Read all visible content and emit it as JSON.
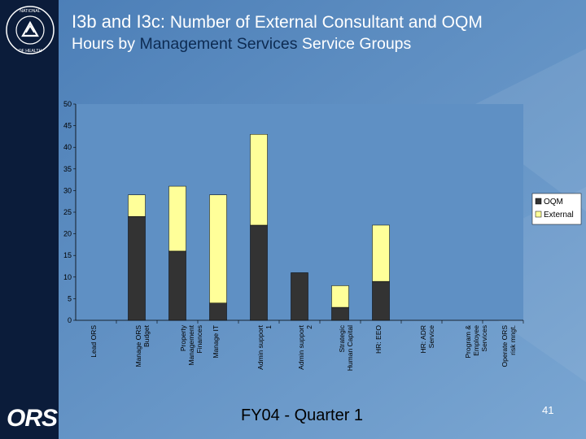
{
  "slide": {
    "title_prefix": "I3b and I3c:",
    "title_line1": "Number of External Consultant and OQM",
    "title_line2_a": "Hours by",
    "title_line2_highlight": "Management Services",
    "title_line2_b": "Service Groups",
    "footer": "FY04 - Quarter 1",
    "page_number": "41",
    "logo_text": "ORS",
    "seal_text": "NATIONAL INSTITUTES OF HEALTH"
  },
  "colors": {
    "background": "#5b8cc0",
    "sidebar": "#0b1c3a",
    "oqm": "#333333",
    "external": "#ffff99"
  },
  "chart_data": {
    "type": "bar",
    "stacked": true,
    "categories": [
      "Lead ORS",
      "Manage ORS Budget",
      "Property Management Finances",
      "Manage IT",
      "Admin support 1",
      "Admin support 2",
      "Strategic Human Capital",
      "HR: EEO",
      "HR: ADR Service",
      "Program & Employee Services",
      "Operate ORS risk mngt."
    ],
    "series": [
      {
        "name": "OQM",
        "values": [
          0,
          24,
          16,
          4,
          22,
          11,
          3,
          9,
          0,
          0,
          0
        ]
      },
      {
        "name": "External",
        "values": [
          0,
          5,
          15,
          25,
          21,
          0,
          5,
          13,
          0,
          0,
          0
        ]
      }
    ],
    "yticks": [
      0,
      5,
      10,
      15,
      20,
      25,
      30,
      35,
      40,
      45,
      50
    ],
    "ylim": [
      0,
      50
    ],
    "legend": [
      "OQM",
      "External"
    ],
    "legend_position": "right"
  }
}
